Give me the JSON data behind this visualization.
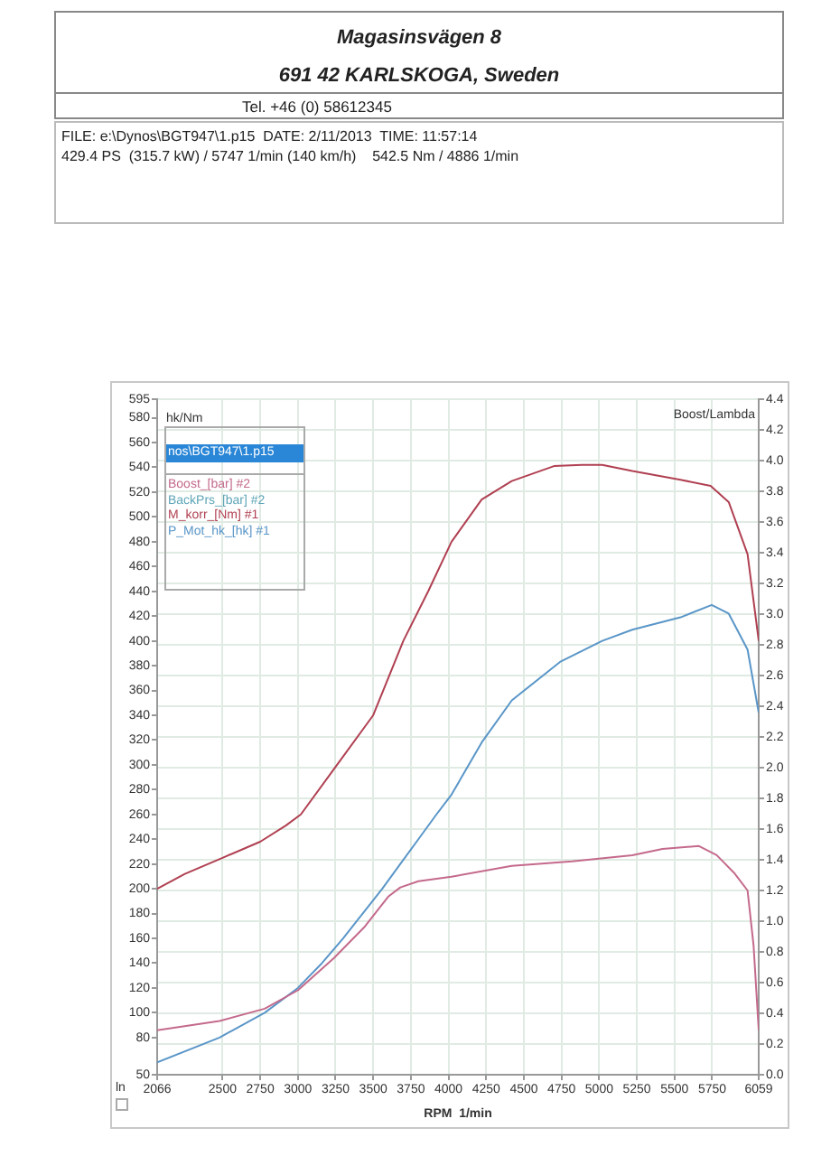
{
  "chart_data": {
    "type": "line",
    "annotations": [
      "Magasinsvägen 8",
      "691 42 KARLSKOGA, Sweden",
      "Tel. +46 (0) 58612345",
      "FILE: e:\\Dynos\\BGT947\\1.p15  DATE: 2/11/2013  TIME: 11:57:14",
      "429.4 PS  (315.7 kW) / 5747 1/min (140 km/h)    542.5 Nm / 4886 1/min",
      "ln"
    ],
    "xlabel": "RPM  1/min",
    "ylabel": "hk/Nm",
    "y2label": "Boost/Lambda",
    "legend_title": "nos\\BGT947\\1.p15",
    "xlim": [
      2066,
      6059
    ],
    "xticks": [
      2066,
      2500,
      2750,
      3000,
      3250,
      3500,
      3750,
      4000,
      4250,
      4500,
      4750,
      5000,
      5250,
      5500,
      5750,
      6059
    ],
    "ylim": [
      50,
      595
    ],
    "yticks": [
      50,
      80,
      100,
      120,
      140,
      160,
      180,
      200,
      220,
      240,
      260,
      280,
      300,
      320,
      340,
      360,
      380,
      400,
      420,
      440,
      460,
      480,
      500,
      520,
      540,
      560,
      580,
      595
    ],
    "y2lim": [
      0,
      4.4
    ],
    "y2ticks": [
      {
        "value": 0,
        "label": "0.0"
      },
      0.2,
      0.4,
      0.6,
      0.8,
      {
        "value": 1,
        "label": "1.0"
      },
      1.2,
      1.4,
      1.6,
      1.8,
      {
        "value": 2,
        "label": "2.0"
      },
      2.2,
      2.4,
      2.6,
      2.8,
      {
        "value": 3,
        "label": "3.0"
      },
      3.2,
      3.4,
      3.6,
      3.8,
      {
        "value": 4,
        "label": "4.0"
      },
      4.2,
      4.4
    ],
    "grid": true,
    "legend": "top left",
    "series": [
      {
        "name": "Boost_[bar] #2",
        "color": "#c46a8c",
        "axis": "y2",
        "x": [
          2066,
          2480,
          2780,
          3000,
          3240,
          3440,
          3600,
          3680,
          3800,
          4020,
          4420,
          4820,
          5220,
          5420,
          5660,
          5780,
          5900,
          5985,
          6025,
          6059
        ],
        "values": [
          0.29,
          0.35,
          0.43,
          0.55,
          0.76,
          0.96,
          1.16,
          1.22,
          1.26,
          1.29,
          1.36,
          1.39,
          1.43,
          1.47,
          1.49,
          1.43,
          1.31,
          1.2,
          0.84,
          0.29
        ]
      },
      {
        "name": "BackPrs_[bar] #2",
        "color": "#5fa6b8",
        "axis": "y2"
      },
      {
        "name": "M_korr_[Nm] #1",
        "color": "#b04052",
        "x": [
          2066,
          2250,
          2500,
          2750,
          2920,
          3020,
          3260,
          3500,
          3700,
          3865,
          4020,
          4220,
          4420,
          4700,
          4886,
          5020,
          5220,
          5540,
          5740,
          5860,
          5985,
          6059
        ],
        "values": [
          200,
          212,
          225,
          238,
          251,
          260,
          300,
          340,
          400,
          440,
          480,
          514,
          529,
          541,
          542,
          542,
          537,
          530,
          525,
          512,
          470,
          400
        ]
      },
      {
        "name": "P_Mot_hk_[hk] #1",
        "color": "#5a96c8",
        "x": [
          2066,
          2480,
          2780,
          3000,
          3160,
          3300,
          3430,
          3560,
          3680,
          3800,
          3920,
          4020,
          4220,
          4420,
          4740,
          5020,
          5220,
          5540,
          5747,
          5860,
          5985,
          6059
        ],
        "values": [
          60,
          80,
          100,
          120,
          140,
          160,
          180,
          200,
          220,
          240,
          260,
          276,
          318,
          352,
          383,
          400,
          409,
          419,
          429,
          422,
          393,
          342
        ]
      }
    ]
  }
}
